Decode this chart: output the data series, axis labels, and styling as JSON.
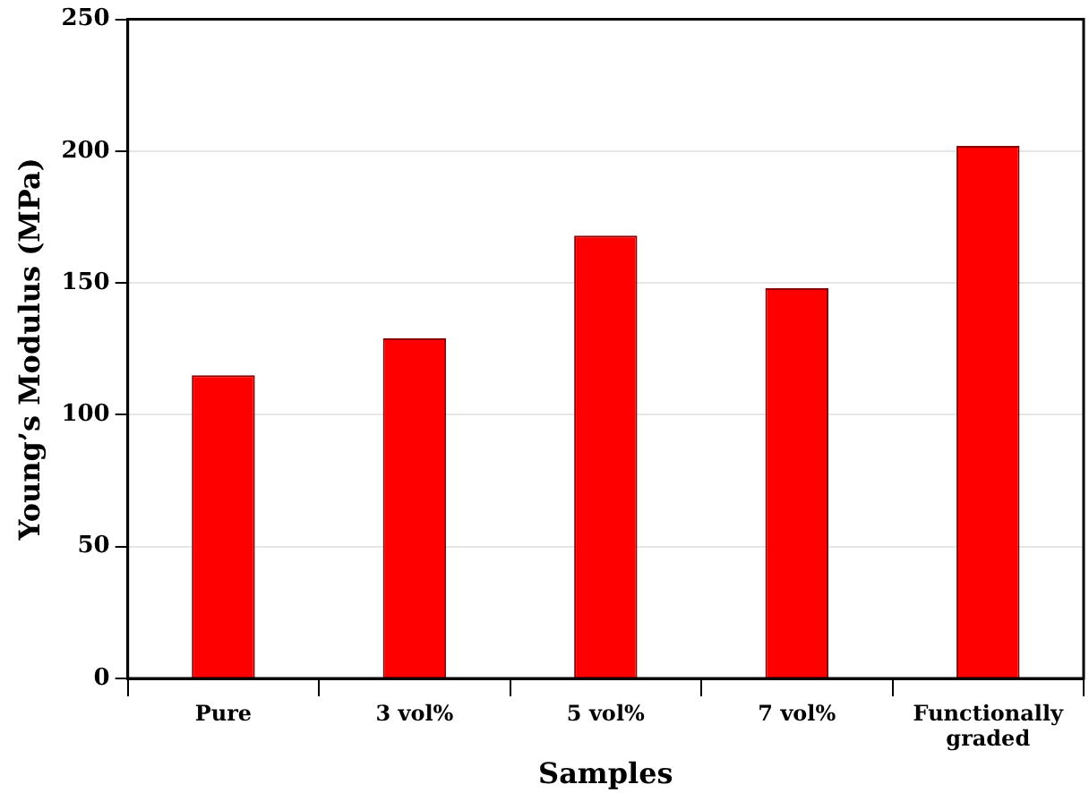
{
  "chart_data": {
    "type": "bar",
    "xlabel": "Samples",
    "ylabel": "Young’s Modulus (MPa)",
    "categories": [
      "Pure",
      "3 vol%",
      "5 vol%",
      "7 vol%",
      "Functionally graded"
    ],
    "values": [
      115,
      129,
      168,
      148,
      202
    ],
    "color": "#ff0000",
    "ylim": [
      0,
      250
    ],
    "yticks": [
      0,
      50,
      100,
      150,
      200,
      250
    ],
    "grid": "y",
    "legend": false
  }
}
